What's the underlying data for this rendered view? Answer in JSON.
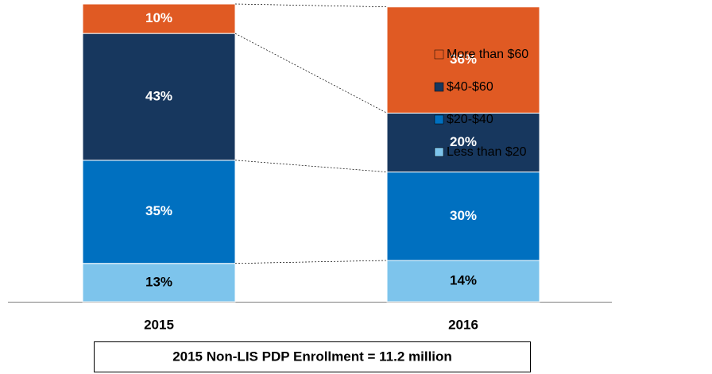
{
  "chart_data": {
    "type": "stacked_bar",
    "categories": [
      "2015",
      "2016"
    ],
    "series": [
      {
        "name": "Less than $20",
        "color": "#7dc4ec",
        "values": [
          13,
          14
        ],
        "value_labels": [
          "13%",
          "14%"
        ]
      },
      {
        "name": "$20-$40",
        "color": "#0070c0",
        "values": [
          35,
          30
        ],
        "value_labels": [
          "35%",
          "30%"
        ]
      },
      {
        "name": "$40-$60",
        "color": "#17375e",
        "values": [
          43,
          20
        ],
        "value_labels": [
          "43%",
          "20%"
        ]
      },
      {
        "name": "More than $60",
        "color": "#e05a23",
        "values": [
          10,
          36
        ],
        "value_labels": [
          "10%",
          "36%"
        ]
      }
    ],
    "ylim": [
      0,
      101
    ],
    "note": "2015 Non-LIS PDP Enrollment = 11.2 million"
  }
}
